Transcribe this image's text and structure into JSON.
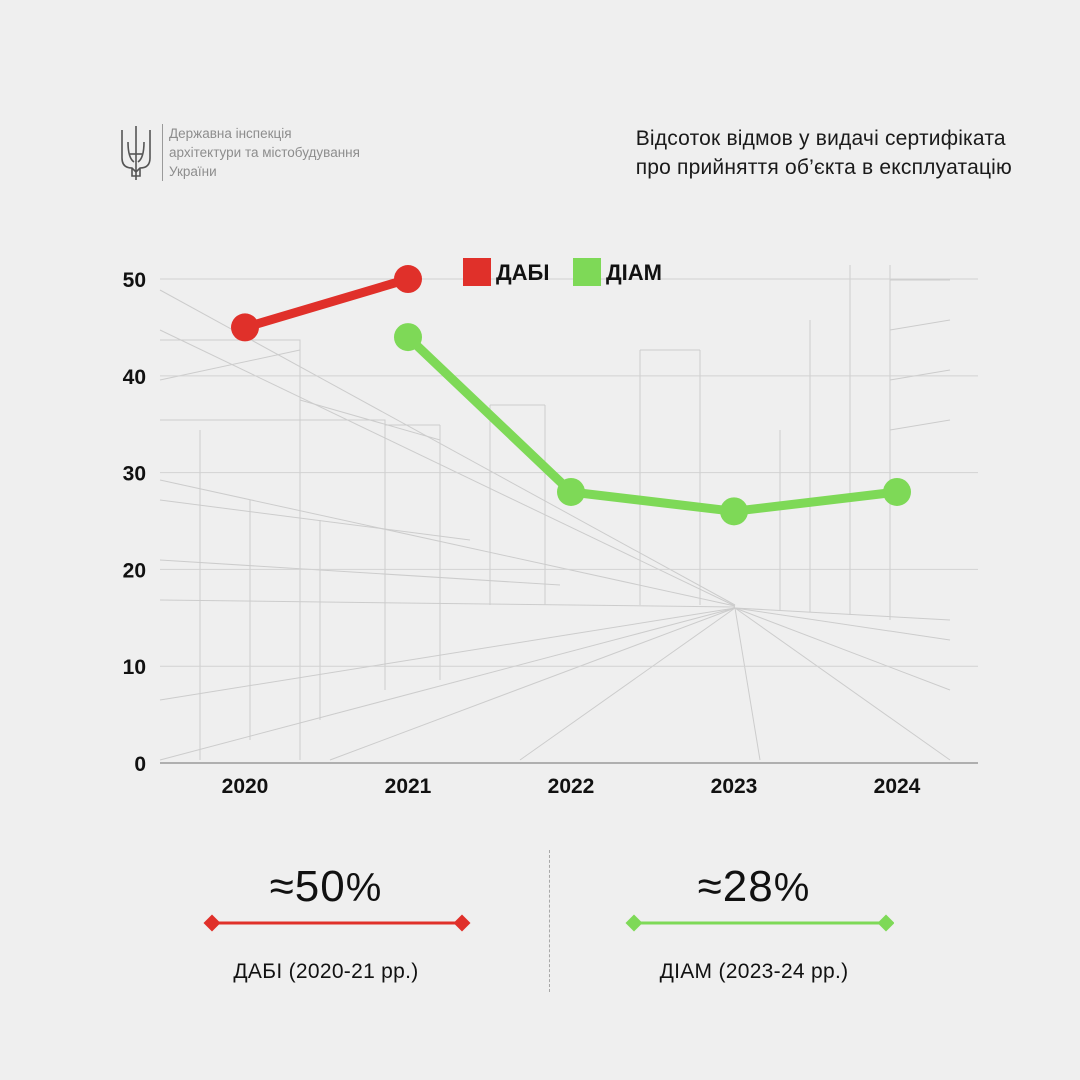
{
  "header": {
    "org_lines": [
      "Державна інспекція",
      "архітектури та містобудування",
      "України"
    ],
    "emblem_icon": "trident-icon"
  },
  "title_lines": [
    "Відсоток відмов у видачі сертифіката",
    "про прийняття об’єкта в експлуатацію"
  ],
  "chart_data": {
    "type": "line",
    "x": [
      "2020",
      "2021",
      "2022",
      "2023",
      "2024"
    ],
    "ylim": [
      0,
      53
    ],
    "yticks": [
      0,
      10,
      20,
      30,
      40,
      50
    ],
    "grid": true,
    "legend_position": "top-center",
    "series": [
      {
        "name": "ДАБІ",
        "color": "#e0302a",
        "x": [
          "2020",
          "2021"
        ],
        "values": [
          45,
          50
        ]
      },
      {
        "name": "ДІАМ",
        "color": "#7ed957",
        "x": [
          "2021",
          "2022",
          "2023",
          "2024"
        ],
        "values": [
          44,
          28,
          26,
          28
        ]
      }
    ]
  },
  "stats": [
    {
      "value": "≈50",
      "unit": "%",
      "caption": "ДАБІ (2020-21 рр.)",
      "color": "#e0302a"
    },
    {
      "value": "≈28",
      "unit": "%",
      "caption": "ДІАМ (2023-24 рр.)",
      "color": "#7ed957"
    }
  ]
}
